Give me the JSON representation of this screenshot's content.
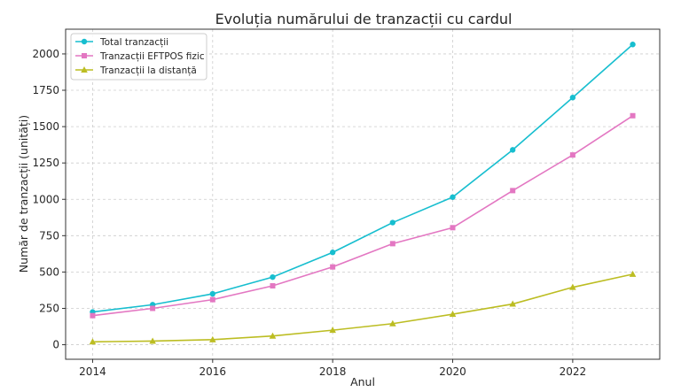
{
  "chart_data": {
    "type": "line",
    "title": "Evoluția numărului de tranzacții cu cardul",
    "xlabel": "Anul",
    "ylabel": "Număr de tranzacții (unități)",
    "x": [
      2014,
      2015,
      2016,
      2017,
      2018,
      2019,
      2020,
      2021,
      2022,
      2023
    ],
    "xticks": [
      2014,
      2016,
      2018,
      2020,
      2022
    ],
    "yticks": [
      0,
      250,
      500,
      750,
      1000,
      1250,
      1500,
      1750,
      2000
    ],
    "xlim": [
      2013.55,
      2023.45
    ],
    "ylim": [
      -100,
      2170
    ],
    "grid": true,
    "legend_position": "upper left",
    "series": [
      {
        "name": "Total tranzacții",
        "color": "#17becf",
        "marker": "circle",
        "values": [
          225,
          275,
          350,
          465,
          635,
          840,
          1015,
          1340,
          1700,
          2065
        ]
      },
      {
        "name": "Tranzacții EFTPOS fizic",
        "color": "#e377c2",
        "marker": "square",
        "values": [
          200,
          250,
          310,
          405,
          535,
          695,
          805,
          1060,
          1305,
          1575
        ]
      },
      {
        "name": "Tranzacții la distanță",
        "color": "#bcbd22",
        "marker": "triangle",
        "values": [
          20,
          25,
          35,
          60,
          100,
          145,
          210,
          280,
          395,
          485
        ]
      }
    ]
  }
}
